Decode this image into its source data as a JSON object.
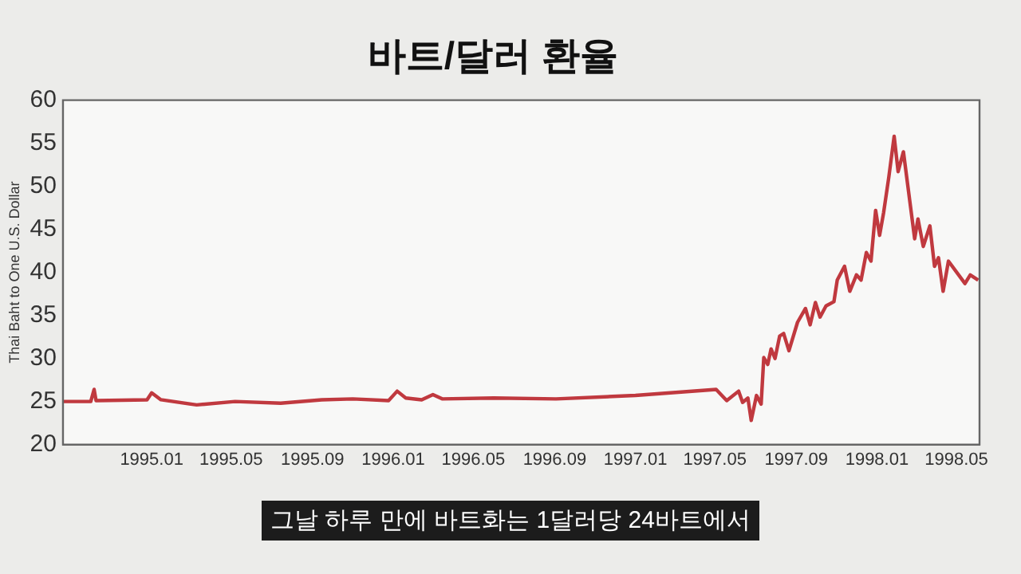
{
  "chart_data": {
    "type": "line",
    "title": "바트/달러 환율",
    "ylabel": "Thai Baht to One U.S. Dollar",
    "annotations": [
      "그날 하루 만에 바트화는 1달러당 24바트에서"
    ],
    "x": [
      "1994-08-20",
      "1994-10-01",
      "1994-10-06",
      "1994-10-09",
      "1994-12-25",
      "1995-01-01",
      "1995-01-15",
      "1995-03-10",
      "1995-05-07",
      "1995-07-15",
      "1995-09-15",
      "1995-11-01",
      "1995-12-25",
      "1996-01-07",
      "1996-01-20",
      "1996-02-13",
      "1996-03-01",
      "1996-03-15",
      "1996-06-01",
      "1996-09-03",
      "1997-01-01",
      "1997-05-03",
      "1997-05-19",
      "1997-06-06",
      "1997-06-12",
      "1997-06-20",
      "1997-06-25",
      "1997-07-03",
      "1997-07-10",
      "1997-07-14",
      "1997-07-20",
      "1997-07-25",
      "1997-07-31",
      "1997-08-07",
      "1997-08-13",
      "1997-08-21",
      "1997-09-03",
      "1997-09-15",
      "1997-09-22",
      "1997-09-30",
      "1997-10-07",
      "1997-10-16",
      "1997-10-28",
      "1997-11-02",
      "1997-11-13",
      "1997-11-21",
      "1997-12-01",
      "1997-12-08",
      "1997-12-16",
      "1997-12-23",
      "1997-12-30",
      "1998-01-05",
      "1998-01-11",
      "1998-01-19",
      "1998-01-27",
      "1998-02-02",
      "1998-02-10",
      "1998-02-27",
      "1998-03-04",
      "1998-03-12",
      "1998-03-22",
      "1998-03-29",
      "1998-04-04",
      "1998-04-11",
      "1998-04-19",
      "1998-05-14",
      "1998-05-22",
      "1998-06-03"
    ],
    "series": [
      {
        "color": "#c0393f",
        "values": [
          25.0,
          25.0,
          26.4,
          25.1,
          25.2,
          26.0,
          25.2,
          24.6,
          25.0,
          24.8,
          25.2,
          25.3,
          25.1,
          26.2,
          25.4,
          25.2,
          25.8,
          25.3,
          25.4,
          25.3,
          25.7,
          26.4,
          25.1,
          26.2,
          24.9,
          25.4,
          22.8,
          25.7,
          24.7,
          30.1,
          29.3,
          31.1,
          30.0,
          32.6,
          32.9,
          30.9,
          34.2,
          35.8,
          33.9,
          36.5,
          34.8,
          36.1,
          36.6,
          39.1,
          40.7,
          37.8,
          39.7,
          39.1,
          42.3,
          41.3,
          47.2,
          44.3,
          46.9,
          51.1,
          55.8,
          51.7,
          54.0,
          43.9,
          46.2,
          43.0,
          45.4,
          40.7,
          41.7,
          37.8,
          41.3,
          38.7,
          39.7,
          39.1
        ]
      }
    ],
    "xlim": [
      "1994-08-20",
      "1998-06-05"
    ],
    "xticks": [
      {
        "value": "1995-01-01",
        "label": "1995.01"
      },
      {
        "value": "1995-05-01",
        "label": "1995.05"
      },
      {
        "value": "1995-09-01",
        "label": "1995.09"
      },
      {
        "value": "1996-01-01",
        "label": "1996.01"
      },
      {
        "value": "1996-05-01",
        "label": "1996.05"
      },
      {
        "value": "1996-09-01",
        "label": "1996.09"
      },
      {
        "value": "1997-01-01",
        "label": "1997.01"
      },
      {
        "value": "1997-05-01",
        "label": "1997.05"
      },
      {
        "value": "1997-09-01",
        "label": "1997.09"
      },
      {
        "value": "1998-01-01",
        "label": "1998.01"
      },
      {
        "value": "1998-05-01",
        "label": "1998.05"
      }
    ],
    "ylim": [
      20,
      60
    ],
    "yticks": [
      20,
      25,
      30,
      35,
      40,
      45,
      50,
      55,
      60
    ],
    "grid": false,
    "legend": false,
    "marker": "none",
    "line_style": "solid"
  }
}
